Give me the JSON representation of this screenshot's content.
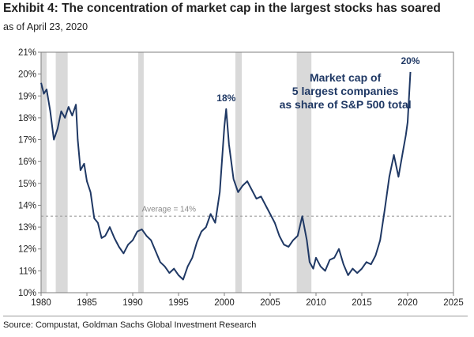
{
  "header": {
    "title": "Exhibit 4: The concentration of market cap in the largest stocks has soared",
    "subtitle": "as of April 23, 2020"
  },
  "footer": {
    "source": "Source: Compustat, Goldman Sachs Global Investment Research"
  },
  "colors": {
    "line": "#1f3864",
    "recession_band": "#d9d9d9",
    "average_line": "#a6a6a6",
    "annotation": "#1f3864"
  },
  "chart_data": {
    "type": "line",
    "xlim": [
      1980,
      2025
    ],
    "ylim": [
      10,
      21
    ],
    "x_ticks": [
      1980,
      1985,
      1990,
      1995,
      2000,
      2005,
      2010,
      2015,
      2020,
      2025
    ],
    "y_ticks": [
      "10%",
      "11%",
      "12%",
      "13%",
      "14%",
      "15%",
      "16%",
      "17%",
      "18%",
      "19%",
      "20%",
      "21%"
    ],
    "y_tick_values": [
      10,
      11,
      12,
      13,
      14,
      15,
      16,
      17,
      18,
      19,
      20,
      21
    ],
    "grid": false,
    "recession_bands": [
      [
        1980.0,
        1980.6
      ],
      [
        1981.6,
        1982.9
      ],
      [
        1990.6,
        1991.2
      ],
      [
        2001.2,
        2001.9
      ],
      [
        2007.9,
        2009.5
      ]
    ],
    "average": {
      "value": 13.5,
      "label": "Average = 14%"
    },
    "annotation_text": [
      "Market cap of",
      "5 largest companies",
      "as share of S&P 500 total"
    ],
    "peak_labels": [
      {
        "x": 2000.2,
        "y": 18.4,
        "label": "18%"
      },
      {
        "x": 2020.3,
        "y": 20.1,
        "label": "20%"
      }
    ],
    "series": [
      {
        "values": [
          [
            1980.0,
            19.6
          ],
          [
            1980.3,
            19.1
          ],
          [
            1980.6,
            19.3
          ],
          [
            1981.0,
            18.3
          ],
          [
            1981.4,
            17.0
          ],
          [
            1981.8,
            17.5
          ],
          [
            1982.2,
            18.3
          ],
          [
            1982.6,
            18.0
          ],
          [
            1983.0,
            18.5
          ],
          [
            1983.4,
            18.1
          ],
          [
            1983.8,
            18.6
          ],
          [
            1984.0,
            17.0
          ],
          [
            1984.3,
            15.6
          ],
          [
            1984.7,
            15.9
          ],
          [
            1985.0,
            15.1
          ],
          [
            1985.4,
            14.6
          ],
          [
            1985.8,
            13.4
          ],
          [
            1986.2,
            13.2
          ],
          [
            1986.6,
            12.5
          ],
          [
            1987.0,
            12.6
          ],
          [
            1987.5,
            13.0
          ],
          [
            1988.0,
            12.5
          ],
          [
            1988.5,
            12.1
          ],
          [
            1989.0,
            11.8
          ],
          [
            1989.5,
            12.2
          ],
          [
            1990.0,
            12.4
          ],
          [
            1990.5,
            12.8
          ],
          [
            1991.0,
            12.9
          ],
          [
            1991.5,
            12.6
          ],
          [
            1992.0,
            12.4
          ],
          [
            1992.5,
            11.9
          ],
          [
            1993.0,
            11.4
          ],
          [
            1993.5,
            11.2
          ],
          [
            1994.0,
            10.9
          ],
          [
            1994.5,
            11.1
          ],
          [
            1995.0,
            10.8
          ],
          [
            1995.5,
            10.6
          ],
          [
            1996.0,
            11.2
          ],
          [
            1996.5,
            11.6
          ],
          [
            1997.0,
            12.3
          ],
          [
            1997.5,
            12.8
          ],
          [
            1998.0,
            13.0
          ],
          [
            1998.5,
            13.6
          ],
          [
            1999.0,
            13.2
          ],
          [
            1999.5,
            14.6
          ],
          [
            2000.0,
            17.6
          ],
          [
            2000.2,
            18.4
          ],
          [
            2000.5,
            16.8
          ],
          [
            2001.0,
            15.2
          ],
          [
            2001.5,
            14.6
          ],
          [
            2002.0,
            14.9
          ],
          [
            2002.5,
            15.1
          ],
          [
            2003.0,
            14.7
          ],
          [
            2003.5,
            14.3
          ],
          [
            2004.0,
            14.4
          ],
          [
            2004.5,
            14.0
          ],
          [
            2005.0,
            13.6
          ],
          [
            2005.5,
            13.2
          ],
          [
            2006.0,
            12.6
          ],
          [
            2006.5,
            12.2
          ],
          [
            2007.0,
            12.1
          ],
          [
            2007.5,
            12.4
          ],
          [
            2008.0,
            12.6
          ],
          [
            2008.5,
            13.5
          ],
          [
            2009.0,
            12.4
          ],
          [
            2009.3,
            11.4
          ],
          [
            2009.7,
            11.1
          ],
          [
            2010.0,
            11.6
          ],
          [
            2010.5,
            11.2
          ],
          [
            2011.0,
            11.0
          ],
          [
            2011.5,
            11.5
          ],
          [
            2012.0,
            11.6
          ],
          [
            2012.5,
            12.0
          ],
          [
            2013.0,
            11.3
          ],
          [
            2013.5,
            10.8
          ],
          [
            2014.0,
            11.1
          ],
          [
            2014.5,
            10.9
          ],
          [
            2015.0,
            11.1
          ],
          [
            2015.5,
            11.4
          ],
          [
            2016.0,
            11.3
          ],
          [
            2016.5,
            11.7
          ],
          [
            2017.0,
            12.4
          ],
          [
            2017.5,
            13.8
          ],
          [
            2018.0,
            15.3
          ],
          [
            2018.5,
            16.3
          ],
          [
            2019.0,
            15.3
          ],
          [
            2019.5,
            16.5
          ],
          [
            2019.8,
            17.2
          ],
          [
            2020.0,
            17.8
          ],
          [
            2020.3,
            20.1
          ]
        ]
      }
    ]
  }
}
